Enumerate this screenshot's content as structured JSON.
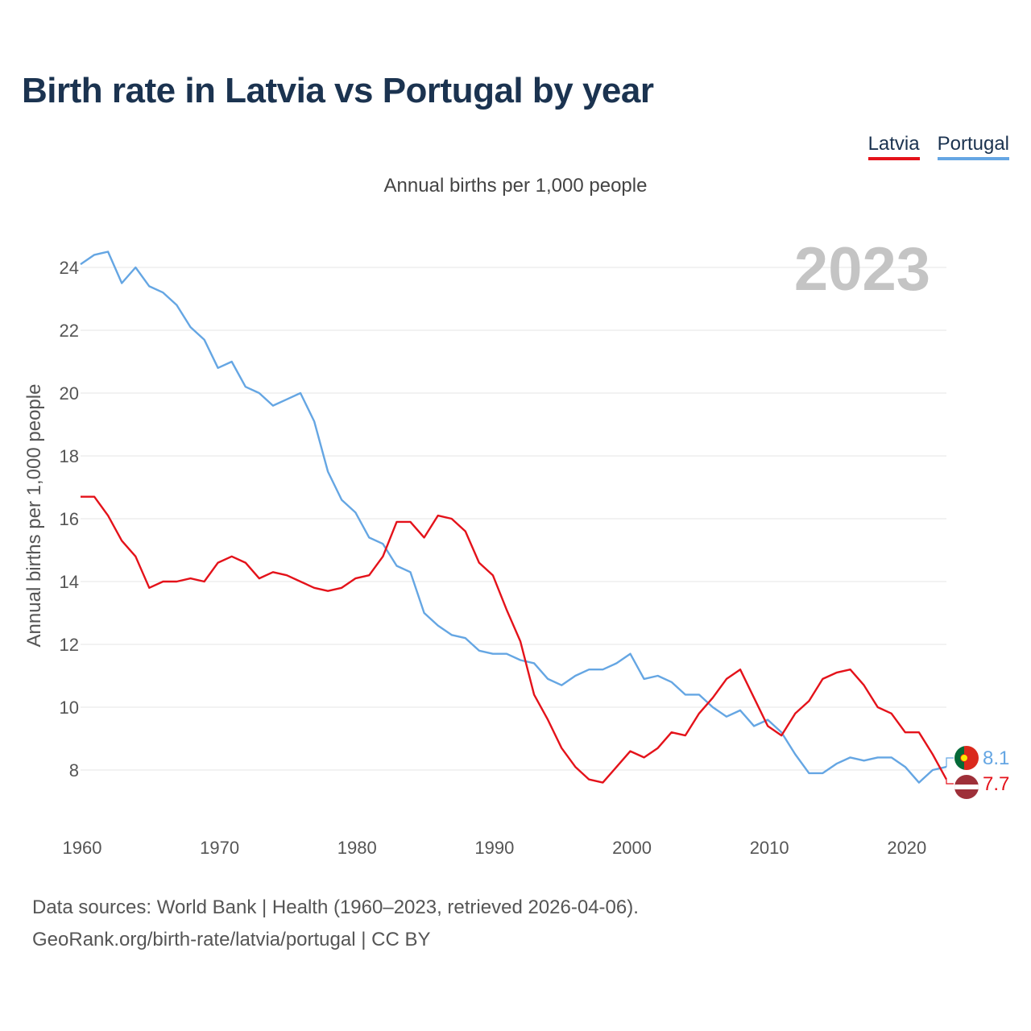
{
  "title": "Birth rate in Latvia vs Portugal by year",
  "subtitle": "Annual births per 1,000 people",
  "legend": {
    "latvia": "Latvia",
    "portugal": "Portugal"
  },
  "colors": {
    "latvia": "#e4121a",
    "portugal": "#65a6e3",
    "grid": "#e6e6e6",
    "axis_text": "#555555",
    "year_overlay": "#c4c4c4"
  },
  "year_overlay": "2023",
  "source_lines": [
    "Data sources: World Bank | Health (1960–2023, retrieved 2026-04-06).",
    "GeoRank.org/birth-rate/latvia/portugal | CC BY"
  ],
  "chart_data": {
    "type": "line",
    "title": "Birth rate in Latvia vs Portugal by year",
    "subtitle": "Annual births per 1,000 people",
    "xlabel": "",
    "ylabel": "Annual births per 1,000 people",
    "xlim": [
      1960,
      2023
    ],
    "ylim": [
      6.5,
      25
    ],
    "x_ticks": [
      1960,
      1970,
      1980,
      1990,
      2000,
      2010,
      2020
    ],
    "y_ticks": [
      8,
      10,
      12,
      14,
      16,
      18,
      20,
      22,
      24
    ],
    "grid": true,
    "legend_position": "top-right",
    "x": [
      1960,
      1961,
      1962,
      1963,
      1964,
      1965,
      1966,
      1967,
      1968,
      1969,
      1970,
      1971,
      1972,
      1973,
      1974,
      1975,
      1976,
      1977,
      1978,
      1979,
      1980,
      1981,
      1982,
      1983,
      1984,
      1985,
      1986,
      1987,
      1988,
      1989,
      1990,
      1991,
      1992,
      1993,
      1994,
      1995,
      1996,
      1997,
      1998,
      1999,
      2000,
      2001,
      2002,
      2003,
      2004,
      2005,
      2006,
      2007,
      2008,
      2009,
      2010,
      2011,
      2012,
      2013,
      2014,
      2015,
      2016,
      2017,
      2018,
      2019,
      2020,
      2021,
      2022,
      2023
    ],
    "series": [
      {
        "name": "Latvia",
        "color": "#e4121a",
        "values": [
          16.7,
          16.7,
          16.1,
          15.3,
          14.8,
          13.8,
          14.0,
          14.0,
          14.1,
          14.0,
          14.6,
          14.8,
          14.6,
          14.1,
          14.3,
          14.2,
          14.0,
          13.8,
          13.7,
          13.8,
          14.1,
          14.2,
          14.8,
          15.9,
          15.9,
          15.4,
          16.1,
          16.0,
          15.6,
          14.6,
          14.2,
          13.1,
          12.1,
          10.4,
          9.6,
          8.7,
          8.1,
          7.7,
          7.6,
          8.1,
          8.6,
          8.4,
          8.7,
          9.2,
          9.1,
          9.8,
          10.3,
          10.9,
          11.2,
          10.3,
          9.4,
          9.1,
          9.8,
          10.2,
          10.9,
          11.1,
          11.2,
          10.7,
          10.0,
          9.8,
          9.2,
          9.2,
          8.5,
          7.7
        ],
        "end_label": "7.7"
      },
      {
        "name": "Portugal",
        "color": "#65a6e3",
        "values": [
          24.1,
          24.4,
          24.5,
          23.5,
          24.0,
          23.4,
          23.2,
          22.8,
          22.1,
          21.7,
          20.8,
          21.0,
          20.2,
          20.0,
          19.6,
          19.8,
          20.0,
          19.1,
          17.5,
          16.6,
          16.2,
          15.4,
          15.2,
          14.5,
          14.3,
          13.0,
          12.6,
          12.3,
          12.2,
          11.8,
          11.7,
          11.7,
          11.5,
          11.4,
          10.9,
          10.7,
          11.0,
          11.2,
          11.2,
          11.4,
          11.7,
          10.9,
          11.0,
          10.8,
          10.4,
          10.4,
          10.0,
          9.7,
          9.9,
          9.4,
          9.6,
          9.2,
          8.5,
          7.9,
          7.9,
          8.2,
          8.4,
          8.3,
          8.4,
          8.4,
          8.1,
          7.6,
          8.0,
          8.1
        ],
        "end_label": "8.1"
      }
    ]
  }
}
